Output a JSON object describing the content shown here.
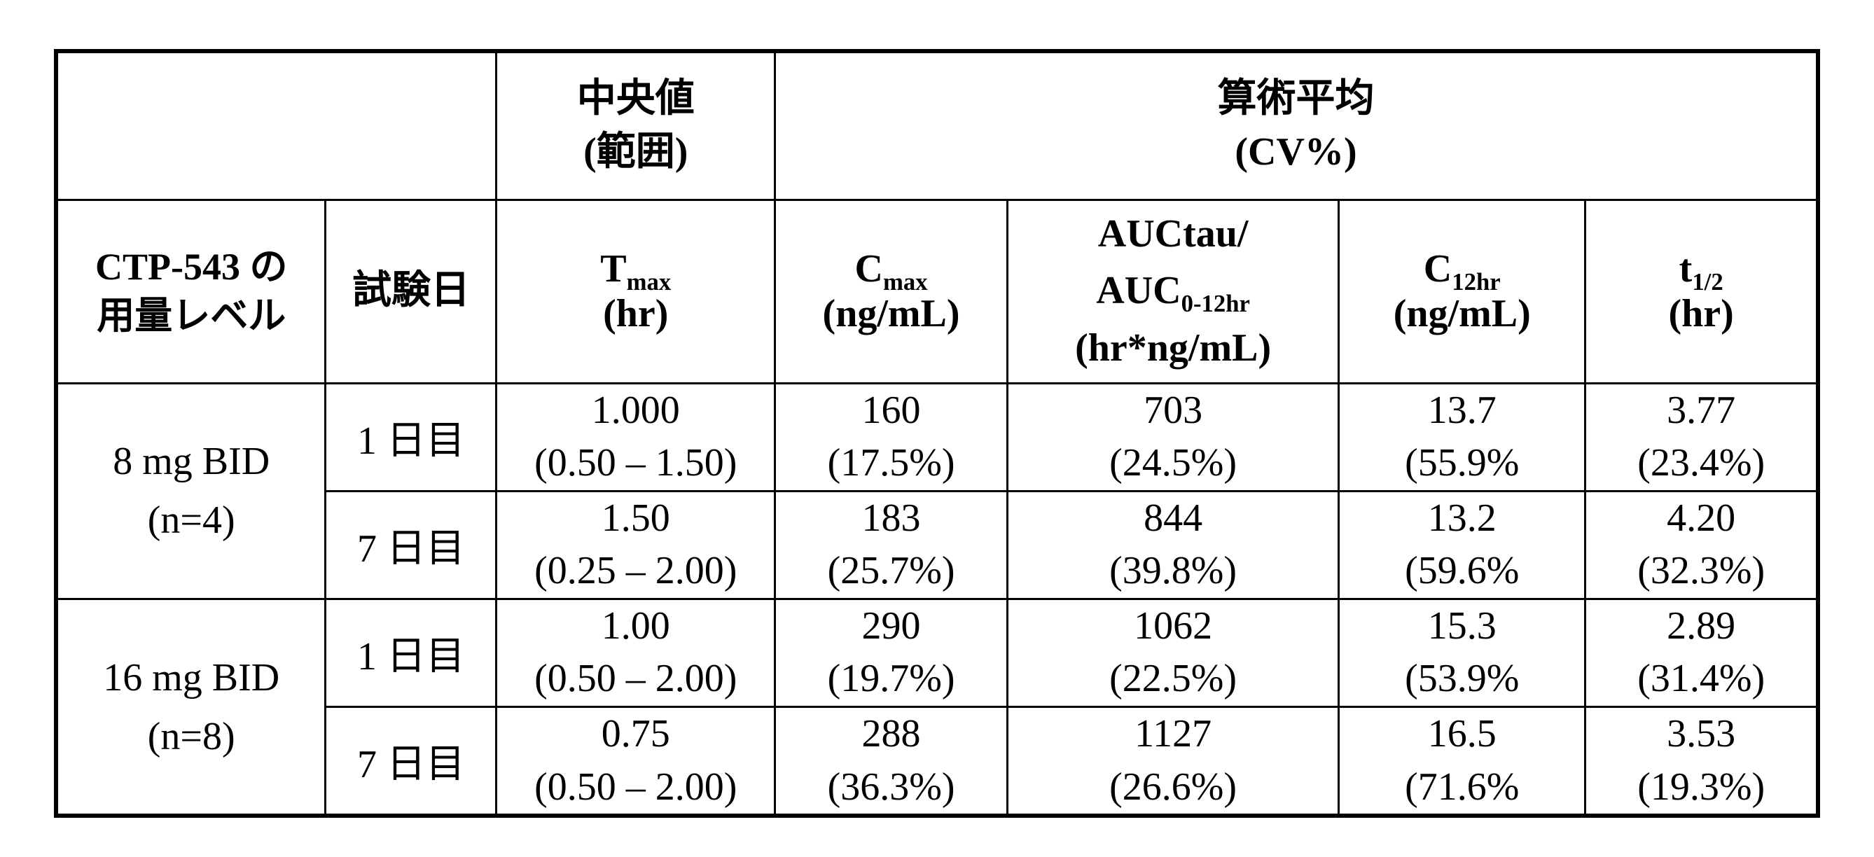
{
  "table": {
    "header_row1": {
      "corner": "",
      "median": {
        "line1": "中央値",
        "line2": "(範囲)"
      },
      "mean": {
        "line1": "算術平均",
        "line2": "(CV%)"
      }
    },
    "header_row2": {
      "dose_label_line1": "CTP-543 の",
      "dose_label_line2": "用量レベル",
      "day_label": "試験日",
      "params": [
        {
          "base": "T",
          "sub": "max",
          "line2": "(hr)"
        },
        {
          "base": "C",
          "sub": "max",
          "line2": "(ng/mL)"
        },
        {
          "line1": "AUCtau/",
          "base": "AUC",
          "sub": "0-12hr",
          "line2": "(hr*ng/mL)"
        },
        {
          "base": "C",
          "sub": "12hr",
          "line2": "(ng/mL)"
        },
        {
          "base": "t",
          "sub": "1/2",
          "line2": "(hr)"
        }
      ]
    },
    "groups": [
      {
        "dose": {
          "line1": "8 mg BID",
          "line2": "(n=4)"
        },
        "rows": [
          {
            "day": "1 日目",
            "values": [
              {
                "v": "1.000",
                "s": "(0.50 – 1.50)"
              },
              {
                "v": "160",
                "s": "(17.5%)"
              },
              {
                "v": "703",
                "s": "(24.5%)"
              },
              {
                "v": "13.7",
                "s": "(55.9%"
              },
              {
                "v": "3.77",
                "s": "(23.4%)"
              }
            ]
          },
          {
            "day": "7 日目",
            "values": [
              {
                "v": "1.50",
                "s": "(0.25 – 2.00)"
              },
              {
                "v": "183",
                "s": "(25.7%)"
              },
              {
                "v": "844",
                "s": "(39.8%)"
              },
              {
                "v": "13.2",
                "s": "(59.6%"
              },
              {
                "v": "4.20",
                "s": "(32.3%)"
              }
            ]
          }
        ]
      },
      {
        "dose": {
          "line1": "16 mg BID",
          "line2": "(n=8)"
        },
        "rows": [
          {
            "day": "1 日目",
            "values": [
              {
                "v": "1.00",
                "s": "(0.50 – 2.00)"
              },
              {
                "v": "290",
                "s": "(19.7%)"
              },
              {
                "v": "1062",
                "s": "(22.5%)"
              },
              {
                "v": "15.3",
                "s": "(53.9%"
              },
              {
                "v": "2.89",
                "s": "(31.4%)"
              }
            ]
          },
          {
            "day": "7 日目",
            "values": [
              {
                "v": "0.75",
                "s": "(0.50 – 2.00)"
              },
              {
                "v": "288",
                "s": "(36.3%)"
              },
              {
                "v": "1127",
                "s": "(26.6%)"
              },
              {
                "v": "16.5",
                "s": "(71.6%"
              },
              {
                "v": "3.53",
                "s": "(19.3%)"
              }
            ]
          }
        ]
      }
    ]
  }
}
